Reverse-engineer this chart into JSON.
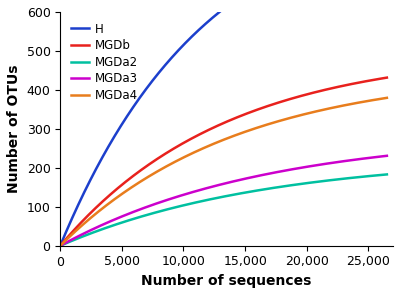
{
  "title": "",
  "xlabel": "Number of sequences",
  "ylabel": "Number of OTUs",
  "xlim": [
    0,
    27000
  ],
  "ylim": [
    0,
    600
  ],
  "xticks": [
    0,
    5000,
    10000,
    15000,
    20000,
    25000
  ],
  "yticks": [
    0,
    100,
    200,
    300,
    400,
    500,
    600
  ],
  "series": [
    {
      "label": "H",
      "color": "#1c3fcc",
      "k": 900,
      "a": 8.5e-05
    },
    {
      "label": "MGDb",
      "color": "#e8211d",
      "k": 500,
      "a": 7.5e-05
    },
    {
      "label": "MGDa2",
      "color": "#00c0a0",
      "k": 230,
      "a": 6e-05
    },
    {
      "label": "MGDa3",
      "color": "#cc00cc",
      "k": 290,
      "a": 6e-05
    },
    {
      "label": "MGDa4",
      "color": "#e87d1d",
      "k": 450,
      "a": 7e-05
    }
  ],
  "legend_loc": "upper left",
  "background_color": "#ffffff",
  "figsize": [
    4.0,
    2.95
  ],
  "dpi": 100
}
